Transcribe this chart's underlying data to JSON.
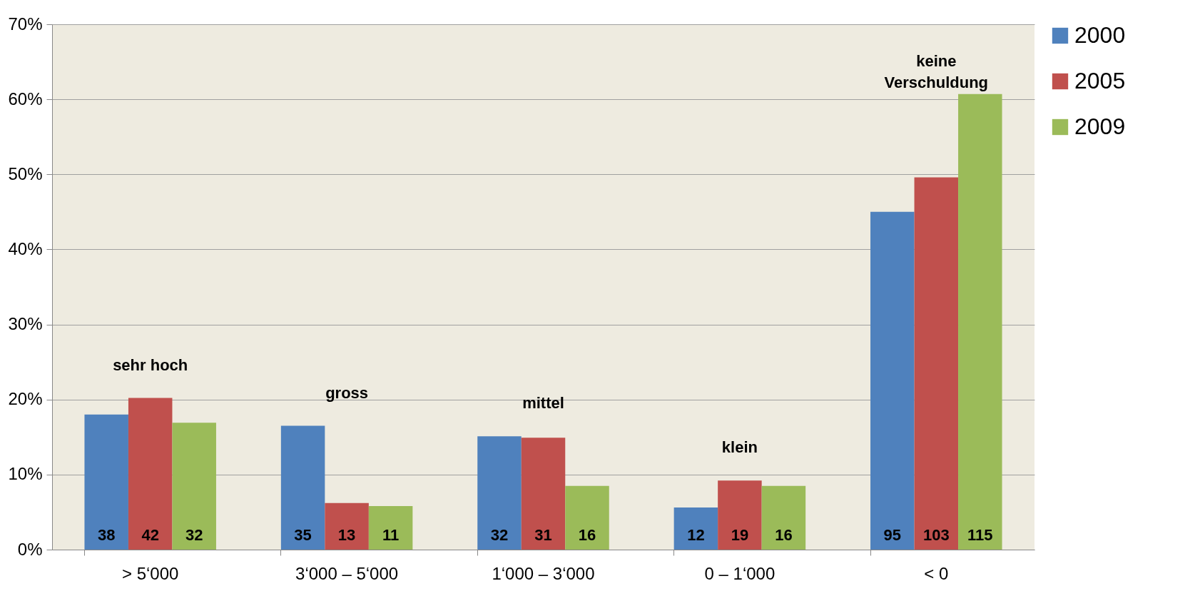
{
  "chart_data": {
    "type": "bar",
    "categories": [
      "> 5‘000",
      "3‘000 – 5‘000",
      "1‘000 – 3‘000",
      "0 – 1‘000",
      "< 0"
    ],
    "series": [
      {
        "name": "2000",
        "color": "#4f81bd",
        "values": [
          18.0,
          16.5,
          15.1,
          5.6,
          45.0
        ]
      },
      {
        "name": "2005",
        "color": "#c0504d",
        "values": [
          20.2,
          6.2,
          14.9,
          9.2,
          49.6
        ]
      },
      {
        "name": "2009",
        "color": "#9bbb59",
        "values": [
          16.9,
          5.8,
          8.5,
          8.5,
          60.7
        ]
      }
    ],
    "ylim": [
      0,
      70
    ],
    "yticks": [
      {
        "value": 0,
        "label": "0%"
      },
      {
        "value": 10,
        "label": "10%"
      },
      {
        "value": 20,
        "label": "20%"
      },
      {
        "value": 30,
        "label": "30%"
      },
      {
        "value": 40,
        "label": "40%"
      },
      {
        "value": 50,
        "label": "50%"
      },
      {
        "value": 60,
        "label": "60%"
      },
      {
        "value": 70,
        "label": "70%"
      }
    ],
    "grid": "y",
    "legend": "right",
    "annotations": [
      "sehr hoch",
      "gross",
      "mittel",
      "klein",
      "keine\nVerschuldung",
      "38",
      "35",
      "32",
      "12",
      "95",
      "42",
      "13",
      "31",
      "19",
      "103",
      "32",
      "11",
      "16",
      "16",
      "115"
    ]
  }
}
